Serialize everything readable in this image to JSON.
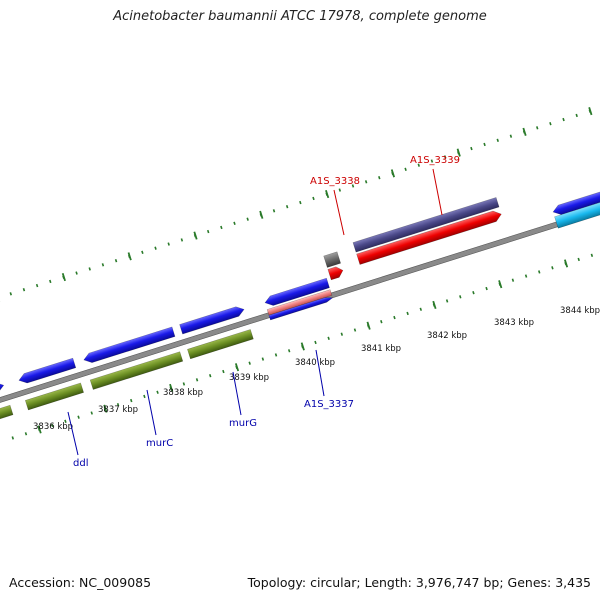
{
  "title": "Acinetobacter baumannii ATCC 17978, complete genome",
  "footer": {
    "accession": "Accession: NC_009085",
    "topology": "Topology: circular; Length: 3,976,747 bp; Genes: 3,435"
  },
  "colors": {
    "backbone": "#8a8a8a",
    "forward_gene": "#1010e0",
    "reverse_gene": "#6b8e23",
    "highlight": "#e60000",
    "label_blue": "#0000aa",
    "label_red": "#cc0000",
    "tick_green": "#2a7a2a"
  },
  "scale_labels": [
    "3836 kbp",
    "3837 kbp",
    "3838 kbp",
    "3839 kbp",
    "3840 kbp",
    "3841 kbp",
    "3842 kbp",
    "3843 kbp",
    "3844 kbp"
  ],
  "gene_labels": [
    {
      "id": "ddl",
      "text": "ddl",
      "color": "blue"
    },
    {
      "id": "murC",
      "text": "murC",
      "color": "blue"
    },
    {
      "id": "murG",
      "text": "murG",
      "color": "blue"
    },
    {
      "id": "A1S_3337",
      "text": "A1S_3337",
      "color": "blue"
    },
    {
      "id": "A1S_3338",
      "text": "A1S_3338",
      "color": "red"
    },
    {
      "id": "A1S_3339",
      "text": "A1S_3339",
      "color": "red"
    }
  ]
}
